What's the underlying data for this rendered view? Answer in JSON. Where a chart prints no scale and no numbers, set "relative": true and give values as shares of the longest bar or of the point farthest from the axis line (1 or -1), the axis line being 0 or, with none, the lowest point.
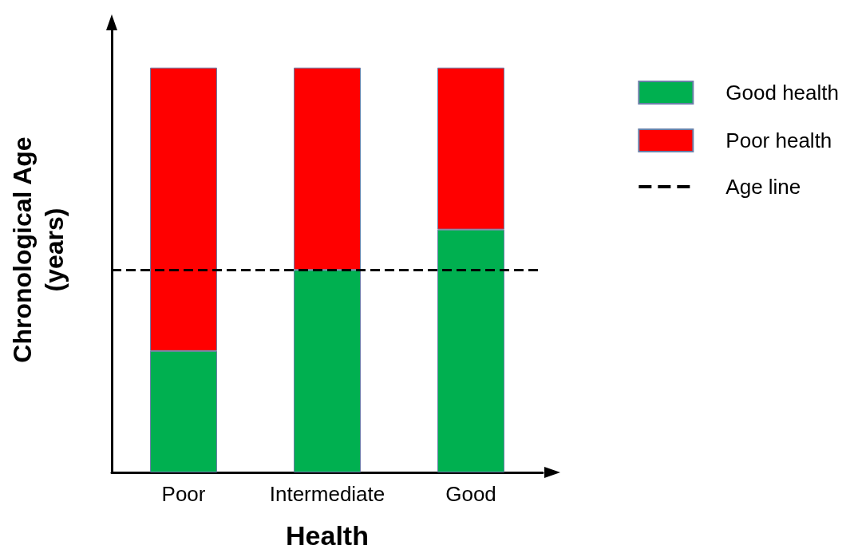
{
  "chart_data": {
    "type": "bar",
    "xlabel": "Health",
    "ylabel": "Chronological Age\n(years)",
    "categories": [
      "Poor",
      "Intermediate",
      "Good"
    ],
    "relative": true,
    "stacked": true,
    "series": [
      {
        "name": "Good health",
        "color": "#00b050",
        "values": [
          0.3,
          0.5,
          0.6
        ]
      },
      {
        "name": "Poor health",
        "color": "#ff0000",
        "values": [
          0.7,
          0.5,
          0.4
        ]
      }
    ],
    "ref_lines": [
      {
        "axis": "y",
        "value": 0.5,
        "label": "Age line",
        "color": "#000000",
        "line_style": "dashed"
      }
    ],
    "legend": "top right",
    "grid": false
  }
}
